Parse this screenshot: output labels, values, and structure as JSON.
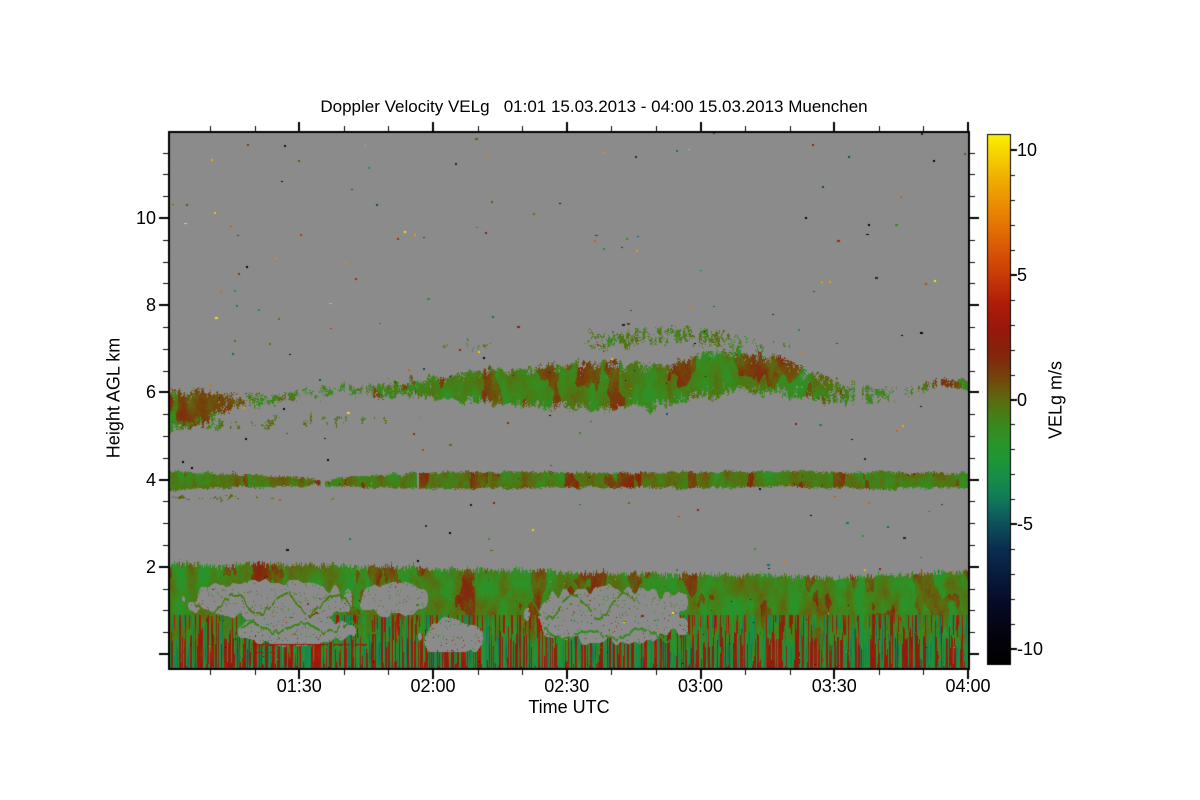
{
  "figure": {
    "title": "Doppler Velocity VELg   01:01 15.03.2013 - 04:00 15.03.2013 Muenchen",
    "xlabel": "Time UTC",
    "ylabel": "Height AGL km",
    "colorbar_label": "VELg m/s"
  },
  "chart_data": {
    "type": "heatmap",
    "title": "Doppler Velocity VELg   01:01 15.03.2013 - 04:00 15.03.2013 Muenchen",
    "xlabel": "Time UTC",
    "ylabel": "Height AGL km",
    "site": "Muenchen",
    "x_axis": {
      "start": "01:01",
      "end": "04:00",
      "duration_min": 179,
      "major_ticks": [
        {
          "label": "01:30",
          "t": 29
        },
        {
          "label": "02:00",
          "t": 59
        },
        {
          "label": "02:30",
          "t": 89
        },
        {
          "label": "03:00",
          "t": 119
        },
        {
          "label": "03:30",
          "t": 149
        },
        {
          "label": "04:00",
          "t": 179
        }
      ],
      "minor_ticks_t": [
        9,
        19,
        39,
        49,
        69,
        79,
        99,
        109,
        129,
        139,
        159,
        169
      ]
    },
    "y_axis": {
      "unit": "km",
      "top_km": 11.95,
      "bottom_km": -0.32,
      "major_ticks": [
        2,
        4,
        6,
        8,
        10
      ],
      "major_ticks_unlabeled": [
        0
      ],
      "minor_ticks": [
        0.5,
        1,
        1.5,
        2.5,
        3,
        3.5,
        4.5,
        5,
        5.5,
        6.5,
        7,
        7.5,
        8.5,
        9,
        9.5,
        10.5,
        11,
        11.5
      ]
    },
    "colorbar": {
      "label": "VELg m/s",
      "vmin": -10.6,
      "vmax": 10.6,
      "major_ticks": [
        10,
        5,
        0,
        -5,
        -10
      ],
      "minor_ticks": [
        9,
        8,
        7,
        6,
        4,
        3,
        2,
        1,
        -1,
        -2,
        -3,
        -4,
        -6,
        -7,
        -8,
        -9
      ],
      "stops": [
        [
          -10.6,
          "#010101"
        ],
        [
          -9.3,
          "#040310"
        ],
        [
          -8.2,
          "#060a26"
        ],
        [
          -7.0,
          "#081c3e"
        ],
        [
          -6.0,
          "#0a2d50"
        ],
        [
          -5.2,
          "#0c4a58"
        ],
        [
          -4.6,
          "#0e5f5c"
        ],
        [
          -4.0,
          "#107a58"
        ],
        [
          -3.2,
          "#168c48"
        ],
        [
          -2.4,
          "#1f9636"
        ],
        [
          -1.6,
          "#2d9328"
        ],
        [
          -1.0,
          "#3b871d"
        ],
        [
          -0.5,
          "#4b7a15"
        ],
        [
          0.0,
          "#5c6a10"
        ],
        [
          0.5,
          "#6b540d"
        ],
        [
          1.0,
          "#753f0c"
        ],
        [
          1.8,
          "#84250c"
        ],
        [
          2.8,
          "#98170c"
        ],
        [
          3.8,
          "#ae1c09"
        ],
        [
          4.8,
          "#c63607"
        ],
        [
          5.8,
          "#d55106"
        ],
        [
          6.8,
          "#e26f04"
        ],
        [
          7.8,
          "#ea8d03"
        ],
        [
          8.8,
          "#f0ad02"
        ],
        [
          9.8,
          "#f5d101"
        ],
        [
          10.6,
          "#f9ef00"
        ]
      ]
    },
    "no_signal_color": "#8b8b8b",
    "frame_color": "#000000",
    "layers": [
      {
        "name": "cirrus-band-6km",
        "edge": "wispy",
        "seed": 7,
        "v_mean": -0.75,
        "v_spread": 1.3,
        "brown": true,
        "points": [
          [
            0,
            5.05,
            6.05
          ],
          [
            8,
            5.2,
            6.1
          ],
          [
            15,
            5.55,
            5.95
          ],
          [
            22,
            5.7,
            6.0
          ],
          [
            30,
            5.85,
            6.1
          ],
          [
            40,
            5.9,
            6.2
          ],
          [
            50,
            5.85,
            6.3
          ],
          [
            58,
            5.8,
            6.35
          ],
          [
            66,
            5.75,
            6.5
          ],
          [
            75,
            5.65,
            6.6
          ],
          [
            85,
            5.6,
            6.7
          ],
          [
            95,
            5.55,
            6.8
          ],
          [
            105,
            5.55,
            6.75
          ],
          [
            112,
            5.6,
            6.7
          ],
          [
            118,
            5.75,
            6.95
          ],
          [
            126,
            5.9,
            7.05
          ],
          [
            134,
            5.95,
            6.9
          ],
          [
            142,
            5.85,
            6.6
          ],
          [
            150,
            5.7,
            6.35
          ],
          [
            158,
            5.75,
            6.2
          ],
          [
            166,
            5.9,
            6.25
          ],
          [
            172,
            6.0,
            6.3
          ],
          [
            179,
            6.05,
            6.35
          ]
        ],
        "coverage": [
          [
            0,
            1
          ],
          [
            8,
            0.95
          ],
          [
            14,
            0.6
          ],
          [
            20,
            0.5
          ],
          [
            28,
            0.55
          ],
          [
            36,
            0.5
          ],
          [
            44,
            0.55
          ],
          [
            52,
            0.7
          ],
          [
            60,
            0.9
          ],
          [
            68,
            1
          ],
          [
            130,
            1
          ],
          [
            140,
            0.9
          ],
          [
            148,
            0.7
          ],
          [
            156,
            0.5
          ],
          [
            164,
            0.4
          ],
          [
            170,
            0.55
          ],
          [
            174,
            0.75
          ],
          [
            179,
            0.8
          ]
        ]
      },
      {
        "name": "cirrus-wisps-7km",
        "edge": "wispy",
        "seed": 11,
        "v_mean": -0.6,
        "v_spread": 1.1,
        "points": [
          [
            92,
            6.85,
            7.4
          ],
          [
            105,
            7.0,
            7.5
          ],
          [
            118,
            7.05,
            7.55
          ],
          [
            130,
            6.95,
            7.35
          ],
          [
            138,
            6.9,
            7.2
          ]
        ],
        "coverage": [
          [
            92,
            0.35
          ],
          [
            100,
            0.5
          ],
          [
            112,
            0.55
          ],
          [
            124,
            0.45
          ],
          [
            138,
            0.25
          ]
        ]
      },
      {
        "name": "cirrus-wisps-7km-early",
        "edge": "wispy",
        "seed": 13,
        "v_mean": -0.5,
        "v_spread": 1.0,
        "points": [
          [
            58,
            6.9,
            7.15
          ],
          [
            70,
            6.95,
            7.25
          ],
          [
            80,
            6.9,
            7.1
          ]
        ],
        "coverage": [
          [
            58,
            0.2
          ],
          [
            70,
            0.3
          ],
          [
            80,
            0.18
          ]
        ]
      },
      {
        "name": "fragments-5km",
        "edge": "wispy",
        "seed": 17,
        "v_mean": -0.5,
        "v_spread": 1.0,
        "points": [
          [
            0,
            5.1,
            5.4
          ],
          [
            20,
            5.15,
            5.45
          ],
          [
            40,
            5.25,
            5.5
          ],
          [
            55,
            5.35,
            5.55
          ]
        ],
        "coverage": [
          [
            0,
            0.5
          ],
          [
            20,
            0.45
          ],
          [
            40,
            0.3
          ],
          [
            55,
            0.2
          ]
        ]
      },
      {
        "name": "layer-4km",
        "edge": "ragged",
        "seed": 23,
        "v_mean": -0.45,
        "v_spread": 1.6,
        "brown": true,
        "points": [
          [
            0,
            3.76,
            4.2
          ],
          [
            15,
            3.8,
            4.17
          ],
          [
            28,
            3.83,
            4.08
          ],
          [
            34,
            3.88,
            4.0
          ],
          [
            40,
            3.82,
            4.1
          ],
          [
            48,
            3.8,
            4.15
          ],
          [
            60,
            3.78,
            4.2
          ],
          [
            80,
            3.8,
            4.22
          ],
          [
            100,
            3.82,
            4.18
          ],
          [
            120,
            3.8,
            4.2
          ],
          [
            140,
            3.82,
            4.22
          ],
          [
            160,
            3.78,
            4.2
          ],
          [
            179,
            3.8,
            4.18
          ]
        ],
        "coverage": [
          [
            0,
            1
          ],
          [
            28,
            0.9
          ],
          [
            33,
            0.45
          ],
          [
            38,
            0.8
          ],
          [
            46,
            0.7
          ],
          [
            54,
            0.85
          ],
          [
            62,
            1
          ],
          [
            179,
            1
          ]
        ]
      },
      {
        "name": "thin-line-3.6km",
        "edge": "wispy",
        "seed": 29,
        "v_mean": -0.1,
        "v_spread": 0.8,
        "points": [
          [
            0,
            3.54,
            3.63
          ],
          [
            20,
            3.55,
            3.62
          ],
          [
            38,
            3.56,
            3.62
          ]
        ],
        "coverage": [
          [
            0,
            0.55
          ],
          [
            20,
            0.4
          ],
          [
            38,
            0.2
          ]
        ]
      },
      {
        "name": "boundary-layer",
        "edge": "ragged",
        "seed": 31,
        "v_mean": -0.85,
        "v_spread": 1.7,
        "brown": true,
        "flames": true,
        "points": [
          [
            0,
            -0.4,
            2.1
          ],
          [
            10,
            -0.4,
            2.05
          ],
          [
            20,
            -0.4,
            2.12
          ],
          [
            30,
            -0.4,
            2.08
          ],
          [
            40,
            -0.4,
            2.02
          ],
          [
            50,
            -0.4,
            2.05
          ],
          [
            60,
            -0.4,
            2.0
          ],
          [
            70,
            -0.4,
            1.97
          ],
          [
            80,
            -0.4,
            1.95
          ],
          [
            90,
            -0.4,
            1.9
          ],
          [
            100,
            -0.4,
            1.88
          ],
          [
            110,
            -0.4,
            1.86
          ],
          [
            120,
            -0.4,
            1.85
          ],
          [
            130,
            -0.4,
            1.84
          ],
          [
            140,
            -0.4,
            1.82
          ],
          [
            150,
            -0.4,
            1.78
          ],
          [
            160,
            -0.4,
            1.84
          ],
          [
            170,
            -0.4,
            1.88
          ],
          [
            179,
            -0.4,
            1.9
          ]
        ],
        "coverage": [
          [
            0,
            1
          ],
          [
            179,
            1
          ]
        ],
        "holes": [
          {
            "t0": 4,
            "t1": 42,
            "km0": 0.78,
            "km1": 1.68,
            "seed": 41
          },
          {
            "t0": 16,
            "t1": 41,
            "km0": 0.18,
            "km1": 0.9,
            "seed": 43
          },
          {
            "t0": 42,
            "t1": 59,
            "km0": 0.85,
            "km1": 1.65,
            "seed": 45
          },
          {
            "t0": 80,
            "t1": 118,
            "km0": 0.25,
            "km1": 1.55,
            "seed": 47
          },
          {
            "t0": 56,
            "t1": 70,
            "km0": -0.1,
            "km1": 0.8,
            "seed": 49
          }
        ],
        "filaments": [
          {
            "t0": 5,
            "t1": 44,
            "km": 1.15,
            "amp": 0.22,
            "v": -0.7,
            "seed": 3
          },
          {
            "t0": 16,
            "t1": 46,
            "km": 0.6,
            "amp": 0.1,
            "v": -1.1,
            "seed": 5
          },
          {
            "t0": 80,
            "t1": 104,
            "km": 1.1,
            "amp": 0.28,
            "v": -0.9,
            "seed": 7
          },
          {
            "t0": 84,
            "t1": 112,
            "km": 0.45,
            "amp": 0.12,
            "v": -1.4,
            "seed": 9
          }
        ]
      }
    ],
    "red_line": {
      "value": 2.4,
      "segments": [
        {
          "km": 0.22,
          "t0": 18.4,
          "t1": 35.4
        },
        {
          "km": 0.22,
          "t0": 36.5,
          "t1": 40.0
        },
        {
          "km": 0.22,
          "t0": 41.5,
          "t1": 44.0
        },
        {
          "km": 0.05,
          "t0": 19.0,
          "t1": 21.0
        },
        {
          "km": 0.05,
          "t0": 22.5,
          "t1": 23.5
        }
      ]
    },
    "speckles": {
      "count": 235,
      "seed": 987654321
    }
  }
}
